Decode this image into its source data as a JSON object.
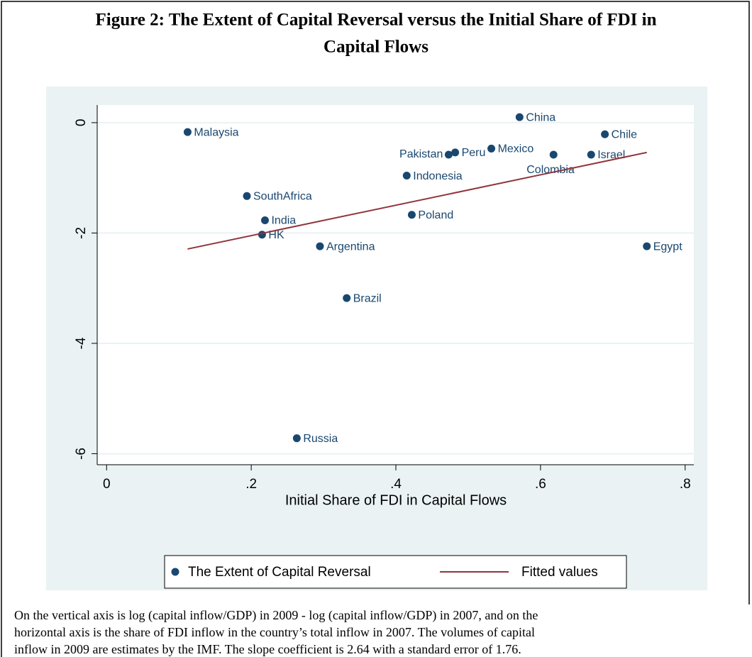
{
  "chart_data": {
    "type": "scatter",
    "title": [
      "Figure 2: The Extent of Capital Reversal versus the Initial Share of FDI in",
      "Capital Flows"
    ],
    "xlabel": "Initial Share of FDI in Capital Flows",
    "xlim": [
      -0.013,
      0.812
    ],
    "ylim": [
      -6.2,
      0.32
    ],
    "xticks": [
      0,
      {
        "value": 0.2,
        "label": ".2"
      },
      {
        "value": 0.4,
        "label": ".4"
      },
      {
        "value": 0.6,
        "label": ".6"
      },
      {
        "value": 0.8,
        "label": ".8"
      }
    ],
    "yticks": [
      0,
      -2,
      -4,
      -6
    ],
    "grid": true,
    "series": [
      {
        "name": "The Extent of Capital Reversal",
        "color": "#1a476f",
        "labels": [
          "Malaysia",
          "China",
          "Chile",
          "Pakistan",
          "Peru",
          "Mexico",
          "Colombia",
          "Israel",
          "Indonesia",
          "SouthAfrica",
          "India",
          "HK",
          "Poland",
          "Argentina",
          "Egypt",
          "Brazil",
          "Russia"
        ],
        "x": [
          0.112,
          0.571,
          0.689,
          0.473,
          0.482,
          0.532,
          0.618,
          0.67,
          0.415,
          0.194,
          0.219,
          0.215,
          0.422,
          0.295,
          0.747,
          0.332,
          0.263
        ],
        "values": [
          -0.17,
          0.1,
          -0.21,
          -0.58,
          -0.54,
          -0.47,
          -0.58,
          -0.58,
          -0.96,
          -1.33,
          -1.77,
          -2.03,
          -1.67,
          -2.24,
          -2.24,
          -3.18,
          -5.72
        ]
      },
      {
        "name": "Fitted values",
        "color": "#90353b",
        "type": "line",
        "x": [
          0.112,
          0.747
        ],
        "values": [
          -2.29,
          -0.54
        ]
      }
    ],
    "notes": [
      "On the vertical axis is log (capital inflow/GDP) in 2009 - log (capital inflow/GDP) in 2007, and on the",
      "horizontal axis is the share of FDI inflow in the country’s total inflow in 2007. The volumes of capital",
      "inflow in 2009 are estimates by the IMF. The slope coefficient is 2.64 with a standard error of 1.76."
    ]
  }
}
